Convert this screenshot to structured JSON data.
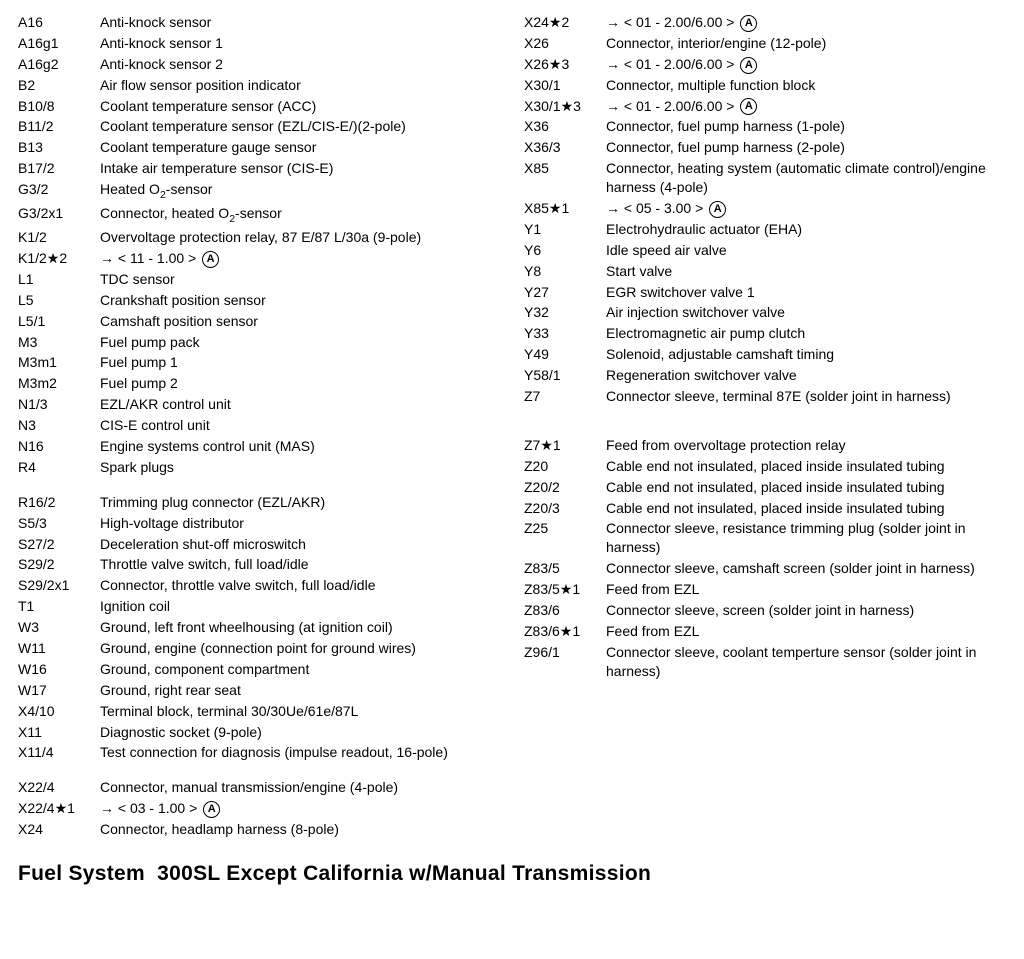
{
  "title_lead": "Fuel System",
  "title_rest": "300SL Except California w/Manual Transmission",
  "circled_letter": "A",
  "left_col": [
    {
      "code": "A16",
      "desc": "Anti-knock sensor"
    },
    {
      "code": "A16g1",
      "desc": "Anti-knock sensor 1"
    },
    {
      "code": "A16g2",
      "desc": "Anti-knock sensor 2"
    },
    {
      "code": "B2",
      "desc": "Air flow sensor position indicator"
    },
    {
      "code": "B10/8",
      "desc": "Coolant temperature sensor (ACC)"
    },
    {
      "code": "B11/2",
      "desc": "Coolant temperature sensor (EZL/CIS-E/)(2-pole)"
    },
    {
      "code": "B13",
      "desc": "Coolant temperature gauge sensor"
    },
    {
      "code": "B17/2",
      "desc": "Intake air temperature sensor (CIS-E)"
    },
    {
      "code": "G3/2",
      "desc": "Heated O₂-sensor",
      "sub": true
    },
    {
      "code": "G3/2x1",
      "desc": "Connector, heated O₂-sensor",
      "sub": true
    },
    {
      "code": "K1/2",
      "desc": "Overvoltage protection relay, 87 E/87 L/30a (9-pole)"
    },
    {
      "code": "K1/2★2",
      "desc": "→  <  11 - 1.00  >",
      "circ": true
    },
    {
      "code": "L1",
      "desc": "TDC sensor"
    },
    {
      "code": "L5",
      "desc": "Crankshaft position sensor"
    },
    {
      "code": "L5/1",
      "desc": "Camshaft position sensor"
    },
    {
      "code": "M3",
      "desc": "Fuel pump pack"
    },
    {
      "code": "M3m1",
      "desc": "Fuel pump 1"
    },
    {
      "code": "M3m2",
      "desc": "Fuel pump 2"
    },
    {
      "code": "N1/3",
      "desc": "EZL/AKR control unit"
    },
    {
      "code": "N3",
      "desc": "CIS-E control unit"
    },
    {
      "code": "N16",
      "desc": "Engine systems control unit (MAS)"
    },
    {
      "code": "R4",
      "desc": "Spark plugs"
    },
    {
      "gap": true
    },
    {
      "code": "R16/2",
      "desc": "Trimming plug connector (EZL/AKR)"
    },
    {
      "code": "S5/3",
      "desc": "High-voltage distributor"
    },
    {
      "code": "S27/2",
      "desc": "Deceleration shut-off microswitch"
    },
    {
      "code": "S29/2",
      "desc": "Throttle valve switch, full load/idle"
    },
    {
      "code": "S29/2x1",
      "desc": "Connector, throttle valve switch, full load/idle"
    },
    {
      "code": "T1",
      "desc": "Ignition coil"
    },
    {
      "code": "W3",
      "desc": "Ground, left front wheelhousing (at ignition coil)"
    },
    {
      "code": "W11",
      "desc": "Ground, engine (connection point for ground wires)"
    },
    {
      "code": "W16",
      "desc": "Ground, component compartment"
    },
    {
      "code": "W17",
      "desc": "Ground, right rear seat"
    },
    {
      "code": "X4/10",
      "desc": "Terminal block, terminal 30/30Ue/61e/87L"
    },
    {
      "code": "X11",
      "desc": "Diagnostic socket (9-pole)"
    },
    {
      "code": "X11/4",
      "desc": "Test connection for diagnosis (impulse readout, 16-pole)"
    },
    {
      "gap": true
    },
    {
      "code": "X22/4",
      "desc": "Connector, manual transmission/engine (4-pole)"
    },
    {
      "code": "X22/4★1",
      "desc": "→  <  03 - 1.00  >",
      "circ": true
    },
    {
      "code": "X24",
      "desc": "Connector, headlamp harness (8-pole)"
    }
  ],
  "right_col": [
    {
      "code": "X24★2",
      "desc": "→  <  01 - 2.00/6.00  >",
      "circ": true
    },
    {
      "code": "X26",
      "desc": "Connector, interior/engine (12-pole)"
    },
    {
      "code": "X26★3",
      "desc": "→  <  01 - 2.00/6.00  >",
      "circ": true
    },
    {
      "code": "X30/1",
      "desc": "Connector, multiple function block"
    },
    {
      "code": "X30/1★3",
      "desc": "→  <  01 - 2.00/6.00  >",
      "circ": true
    },
    {
      "code": "X36",
      "desc": "Connector, fuel pump harness (1-pole)"
    },
    {
      "code": "X36/3",
      "desc": "Connector, fuel pump harness (2-pole)"
    },
    {
      "code": "X85",
      "desc": "Connector, heating system (automatic climate control)/engine harness (4-pole)"
    },
    {
      "code": "X85★1",
      "desc": "→  <  05 - 3.00  >",
      "circ": true
    },
    {
      "code": "Y1",
      "desc": "Electrohydraulic actuator (EHA)"
    },
    {
      "code": "Y6",
      "desc": "Idle speed air valve"
    },
    {
      "code": "Y8",
      "desc": "Start valve"
    },
    {
      "code": "Y27",
      "desc": "EGR switchover valve 1"
    },
    {
      "code": "Y32",
      "desc": "Air injection switchover valve"
    },
    {
      "code": "Y33",
      "desc": "Electromagnetic air pump clutch"
    },
    {
      "code": "Y49",
      "desc": "Solenoid, adjustable camshaft timing"
    },
    {
      "code": "Y58/1",
      "desc": "Regeneration switchover valve"
    },
    {
      "code": "Z7",
      "desc": "Connector sleeve, terminal 87E (solder joint in harness)"
    },
    {
      "gap": true
    },
    {
      "gap": true
    },
    {
      "code": "Z7★1",
      "desc": "Feed from overvoltage protection relay"
    },
    {
      "code": "Z20",
      "desc": "Cable end not insulated, placed inside insulated tubing"
    },
    {
      "code": "Z20/2",
      "desc": "Cable end not insulated, placed inside insulated tubing"
    },
    {
      "code": "Z20/3",
      "desc": "Cable end not insulated, placed inside insulated tubing"
    },
    {
      "code": "Z25",
      "desc": "Connector sleeve, resistance trimming plug (solder joint in harness)"
    },
    {
      "code": "Z83/5",
      "desc": "Connector sleeve, camshaft  screen (solder joint in harness)"
    },
    {
      "code": "Z83/5★1",
      "desc": "Feed from EZL"
    },
    {
      "code": "Z83/6",
      "desc": "Connector sleeve, screen (solder joint in harness)"
    },
    {
      "code": "Z83/6★1",
      "desc": "Feed from EZL"
    },
    {
      "code": "Z96/1",
      "desc": "Connector sleeve, coolant temperture sensor (solder joint in harness)"
    }
  ]
}
